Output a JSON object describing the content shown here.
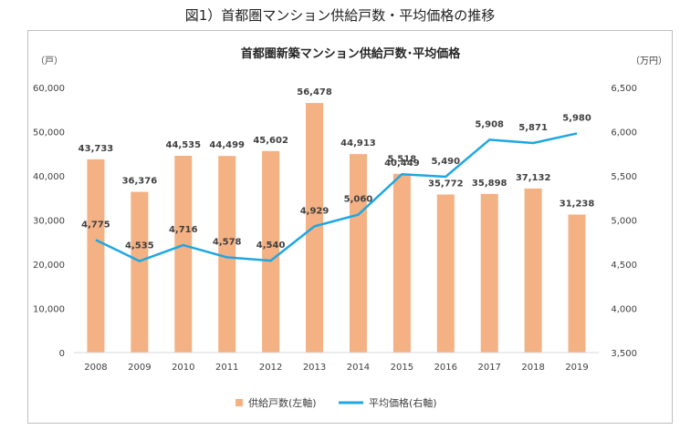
{
  "figure_title": "図1）首都圏マンション供給戸数・平均価格の推移",
  "chart_data": {
    "type": "bar",
    "title": "首都圏新築マンション供給戸数･平均価格",
    "categories": [
      "2008",
      "2009",
      "2010",
      "2011",
      "2012",
      "2013",
      "2014",
      "2015",
      "2016",
      "2017",
      "2018",
      "2019"
    ],
    "series": [
      {
        "name": "供給戸数(左軸)",
        "type": "bar",
        "axis": "left",
        "values": [
          43733,
          36376,
          44535,
          44499,
          45602,
          56478,
          44913,
          40449,
          35772,
          35898,
          37132,
          31238
        ],
        "labels": [
          "43,733",
          "36,376",
          "44,535",
          "44,499",
          "45,602",
          "56,478",
          "44,913",
          "40,449",
          "35,772",
          "35,898",
          "37,132",
          "31,238"
        ]
      },
      {
        "name": "平均価格(右軸)",
        "type": "line",
        "axis": "right",
        "values": [
          4775,
          4535,
          4716,
          4578,
          4540,
          4929,
          5060,
          5518,
          5490,
          5908,
          5871,
          5980
        ],
        "labels": [
          "4,775",
          "4,535",
          "4,716",
          "4,578",
          "4,540",
          "4,929",
          "5,060",
          "5,518",
          "5,490",
          "5,908",
          "5,871",
          "5,980"
        ]
      }
    ],
    "y_left": {
      "unit": "（戸）",
      "range": [
        0,
        60000
      ],
      "ticks": [
        0,
        10000,
        20000,
        30000,
        40000,
        50000,
        60000
      ],
      "tick_labels": [
        "0",
        "10,000",
        "20,000",
        "30,000",
        "40,000",
        "50,000",
        "60,000"
      ]
    },
    "y_right": {
      "unit": "（万円）",
      "range": [
        3500,
        6500
      ],
      "ticks": [
        3500,
        4000,
        4500,
        5000,
        5500,
        6000,
        6500
      ],
      "tick_labels": [
        "3,500",
        "4,000",
        "4,500",
        "5,000",
        "5,500",
        "6,000",
        "6,500"
      ]
    },
    "grid": false,
    "legend_position": "bottom",
    "colors": {
      "bar": "#f4b183",
      "line": "#1ea7e1",
      "label": "#404040",
      "axis": "#d9d9d9"
    }
  }
}
